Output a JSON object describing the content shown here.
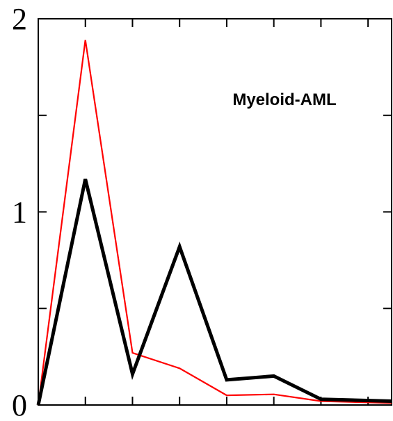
{
  "chart_data": {
    "type": "line",
    "title": "",
    "xlabel": "",
    "ylabel": "",
    "annotation": "Myeloid-AML",
    "ylim": [
      0,
      2
    ],
    "xlim": [
      0,
      7.5
    ],
    "y_ticks": [
      0,
      0.5,
      1,
      1.5,
      2
    ],
    "y_tick_labels": [
      "0",
      "",
      "1",
      "",
      "2"
    ],
    "x_ticks": [
      1,
      2,
      3,
      4,
      5,
      6,
      7
    ],
    "grid": false,
    "series": [
      {
        "color": "#ff0000",
        "stroke": "thin",
        "x": [
          0,
          1,
          2,
          3,
          4,
          5,
          6,
          7.5
        ],
        "y": [
          0,
          1.89,
          0.27,
          0.19,
          0.05,
          0.055,
          0.02,
          0.01
        ]
      },
      {
        "color": "#000000",
        "stroke": "thick",
        "x": [
          0,
          1,
          2,
          3,
          4,
          5,
          6,
          7.5
        ],
        "y": [
          0,
          1.17,
          0.16,
          0.82,
          0.13,
          0.15,
          0.03,
          0.02
        ]
      }
    ]
  }
}
